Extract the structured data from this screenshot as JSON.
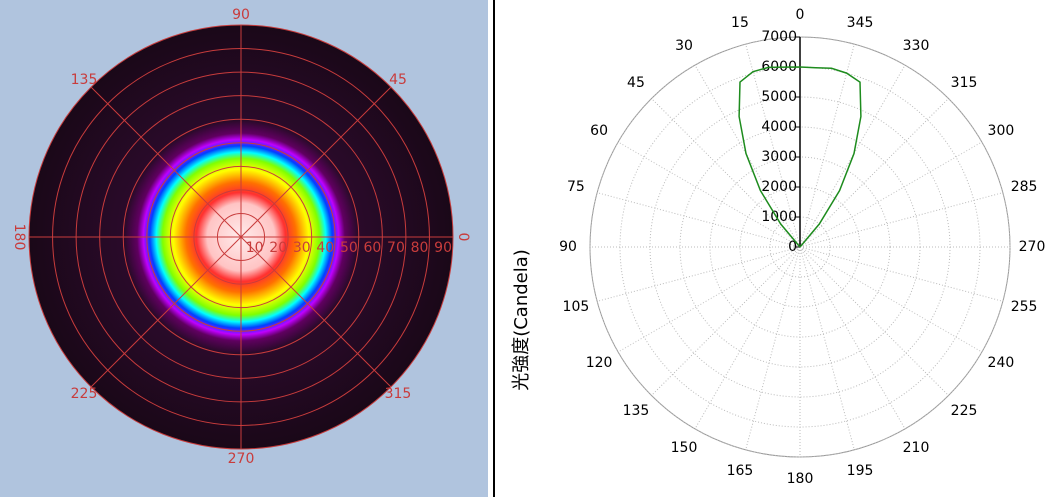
{
  "chart_data": [
    {
      "type": "polar-heatmap",
      "thetaticks": [
        0,
        45,
        90,
        135,
        180,
        225,
        270,
        315
      ],
      "rlim": [
        0,
        90
      ],
      "rticks": [
        10,
        20,
        30,
        40,
        50,
        60,
        70,
        80,
        90
      ],
      "grid": true,
      "color": "#c83c3c"
    },
    {
      "type": "polar",
      "ylabel": "光強度(Candela)",
      "thetaticks": [
        0,
        15,
        30,
        45,
        60,
        75,
        90,
        105,
        120,
        135,
        150,
        165,
        180,
        195,
        210,
        225,
        240,
        255,
        270,
        285,
        300,
        315,
        330,
        345
      ],
      "rlim": [
        0,
        7000
      ],
      "rticks": [
        0,
        1000,
        2000,
        3000,
        4000,
        5000,
        6000,
        7000
      ],
      "grid": true,
      "series": [
        {
          "color": "#1e8c1e",
          "theta": [
            315,
            320,
            325,
            330,
            335,
            340,
            345,
            350,
            355,
            0,
            5,
            10,
            15,
            20,
            25,
            30,
            35,
            40,
            45
          ],
          "values": [
            0,
            1000,
            2300,
            3600,
            4800,
            5850,
            6000,
            6050,
            6000,
            6000,
            6020,
            6080,
            6050,
            5850,
            4800,
            3600,
            2300,
            1000,
            0
          ]
        }
      ]
    }
  ]
}
